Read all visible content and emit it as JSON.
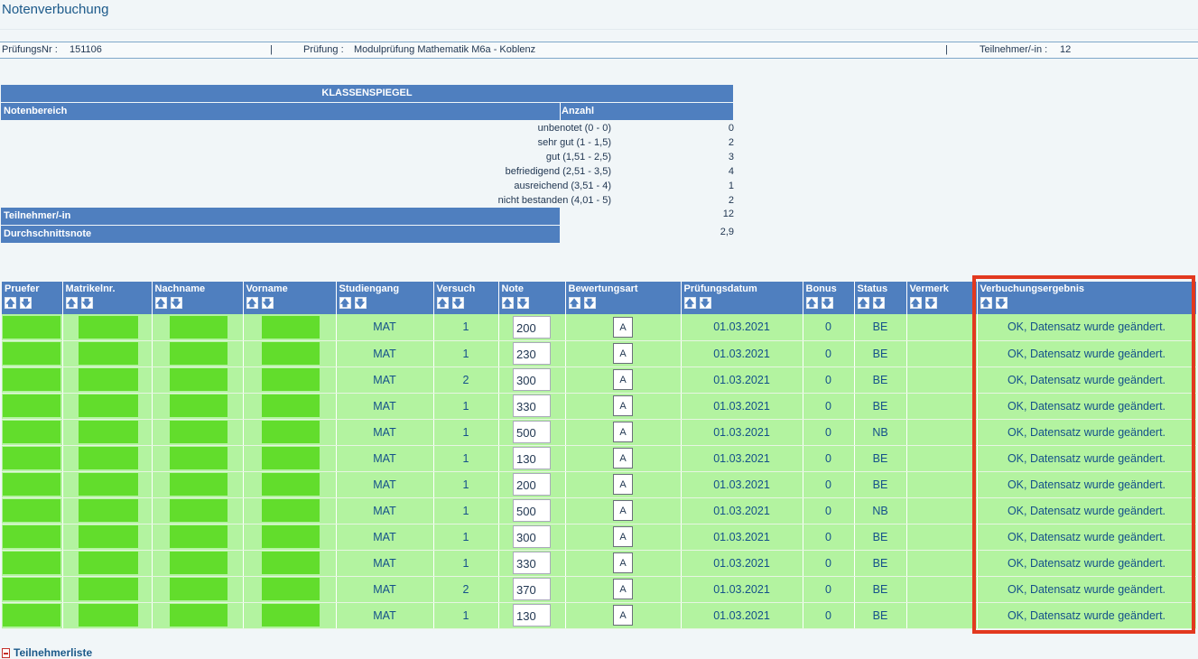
{
  "page": {
    "title": "Notenverbuchung"
  },
  "info": {
    "pruefungsnr_label": "PrüfungsNr :",
    "pruefungsnr": "151106",
    "sep": "|",
    "pruefung_label": "Prüfung :",
    "pruefung": "Modulprüfung Mathematik M6a - Koblenz",
    "teilnehmer_label": "Teilnehmer/-in :",
    "teilnehmer": "12"
  },
  "klassenspiegel": {
    "title": "KLASSENSPIEGEL",
    "col_range": "Notenbereich",
    "col_count": "Anzahl",
    "rows": [
      {
        "range": "unbenotet (0 - 0)",
        "count": "0"
      },
      {
        "range": "sehr gut (1 - 1,5)",
        "count": "2"
      },
      {
        "range": "gut (1,51 - 2,5)",
        "count": "3"
      },
      {
        "range": "befriedigend (2,51 - 3,5)",
        "count": "4"
      },
      {
        "range": "ausreichend (3,51 - 4)",
        "count": "1"
      },
      {
        "range": "nicht bestanden (4,01 - 5)",
        "count": "2"
      }
    ],
    "teilnehmer_label": "Teilnehmer/-in",
    "teilnehmer_value": "12",
    "avg_label": "Durchschnittsnote",
    "avg_value": "2,9"
  },
  "table": {
    "headers": [
      "Pruefer",
      "Matrikelnr.",
      "Nachname",
      "Vorname",
      "Studiengang",
      "Versuch",
      "Note",
      "Bewertungsart",
      "Prüfungsdatum",
      "Bonus",
      "Status",
      "Vermerk",
      "Verbuchungsergebnis"
    ],
    "sort_up": "🡅",
    "sort_down": "🡇",
    "rows": [
      {
        "studiengang": "MAT",
        "versuch": "1",
        "note": "200",
        "bewertungsart": "A",
        "datum": "01.03.2021",
        "bonus": "0",
        "status": "BE",
        "vermerk": "",
        "ergebnis": "OK, Datensatz wurde geändert."
      },
      {
        "studiengang": "MAT",
        "versuch": "1",
        "note": "230",
        "bewertungsart": "A",
        "datum": "01.03.2021",
        "bonus": "0",
        "status": "BE",
        "vermerk": "",
        "ergebnis": "OK, Datensatz wurde geändert."
      },
      {
        "studiengang": "MAT",
        "versuch": "2",
        "note": "300",
        "bewertungsart": "A",
        "datum": "01.03.2021",
        "bonus": "0",
        "status": "BE",
        "vermerk": "",
        "ergebnis": "OK, Datensatz wurde geändert."
      },
      {
        "studiengang": "MAT",
        "versuch": "1",
        "note": "330",
        "bewertungsart": "A",
        "datum": "01.03.2021",
        "bonus": "0",
        "status": "BE",
        "vermerk": "",
        "ergebnis": "OK, Datensatz wurde geändert."
      },
      {
        "studiengang": "MAT",
        "versuch": "1",
        "note": "500",
        "bewertungsart": "A",
        "datum": "01.03.2021",
        "bonus": "0",
        "status": "NB",
        "vermerk": "",
        "ergebnis": "OK, Datensatz wurde geändert."
      },
      {
        "studiengang": "MAT",
        "versuch": "1",
        "note": "130",
        "bewertungsart": "A",
        "datum": "01.03.2021",
        "bonus": "0",
        "status": "BE",
        "vermerk": "",
        "ergebnis": "OK, Datensatz wurde geändert."
      },
      {
        "studiengang": "MAT",
        "versuch": "1",
        "note": "200",
        "bewertungsart": "A",
        "datum": "01.03.2021",
        "bonus": "0",
        "status": "BE",
        "vermerk": "",
        "ergebnis": "OK, Datensatz wurde geändert."
      },
      {
        "studiengang": "MAT",
        "versuch": "1",
        "note": "500",
        "bewertungsart": "A",
        "datum": "01.03.2021",
        "bonus": "0",
        "status": "NB",
        "vermerk": "",
        "ergebnis": "OK, Datensatz wurde geändert."
      },
      {
        "studiengang": "MAT",
        "versuch": "1",
        "note": "300",
        "bewertungsart": "A",
        "datum": "01.03.2021",
        "bonus": "0",
        "status": "BE",
        "vermerk": "",
        "ergebnis": "OK, Datensatz wurde geändert."
      },
      {
        "studiengang": "MAT",
        "versuch": "1",
        "note": "330",
        "bewertungsart": "A",
        "datum": "01.03.2021",
        "bonus": "0",
        "status": "BE",
        "vermerk": "",
        "ergebnis": "OK, Datensatz wurde geändert."
      },
      {
        "studiengang": "MAT",
        "versuch": "2",
        "note": "370",
        "bewertungsart": "A",
        "datum": "01.03.2021",
        "bonus": "0",
        "status": "BE",
        "vermerk": "",
        "ergebnis": "OK, Datensatz wurde geändert."
      },
      {
        "studiengang": "MAT",
        "versuch": "1",
        "note": "130",
        "bewertungsart": "A",
        "datum": "01.03.2021",
        "bonus": "0",
        "status": "BE",
        "vermerk": "",
        "ergebnis": "OK, Datensatz wurde geändert."
      }
    ]
  },
  "footer": {
    "link": "Teilnehmerliste"
  },
  "colors": {
    "header_blue": "#4f7fbf",
    "row_green": "#b3f3a0",
    "redaction_green": "#62dd2c",
    "highlight_red": "#e2391f"
  }
}
